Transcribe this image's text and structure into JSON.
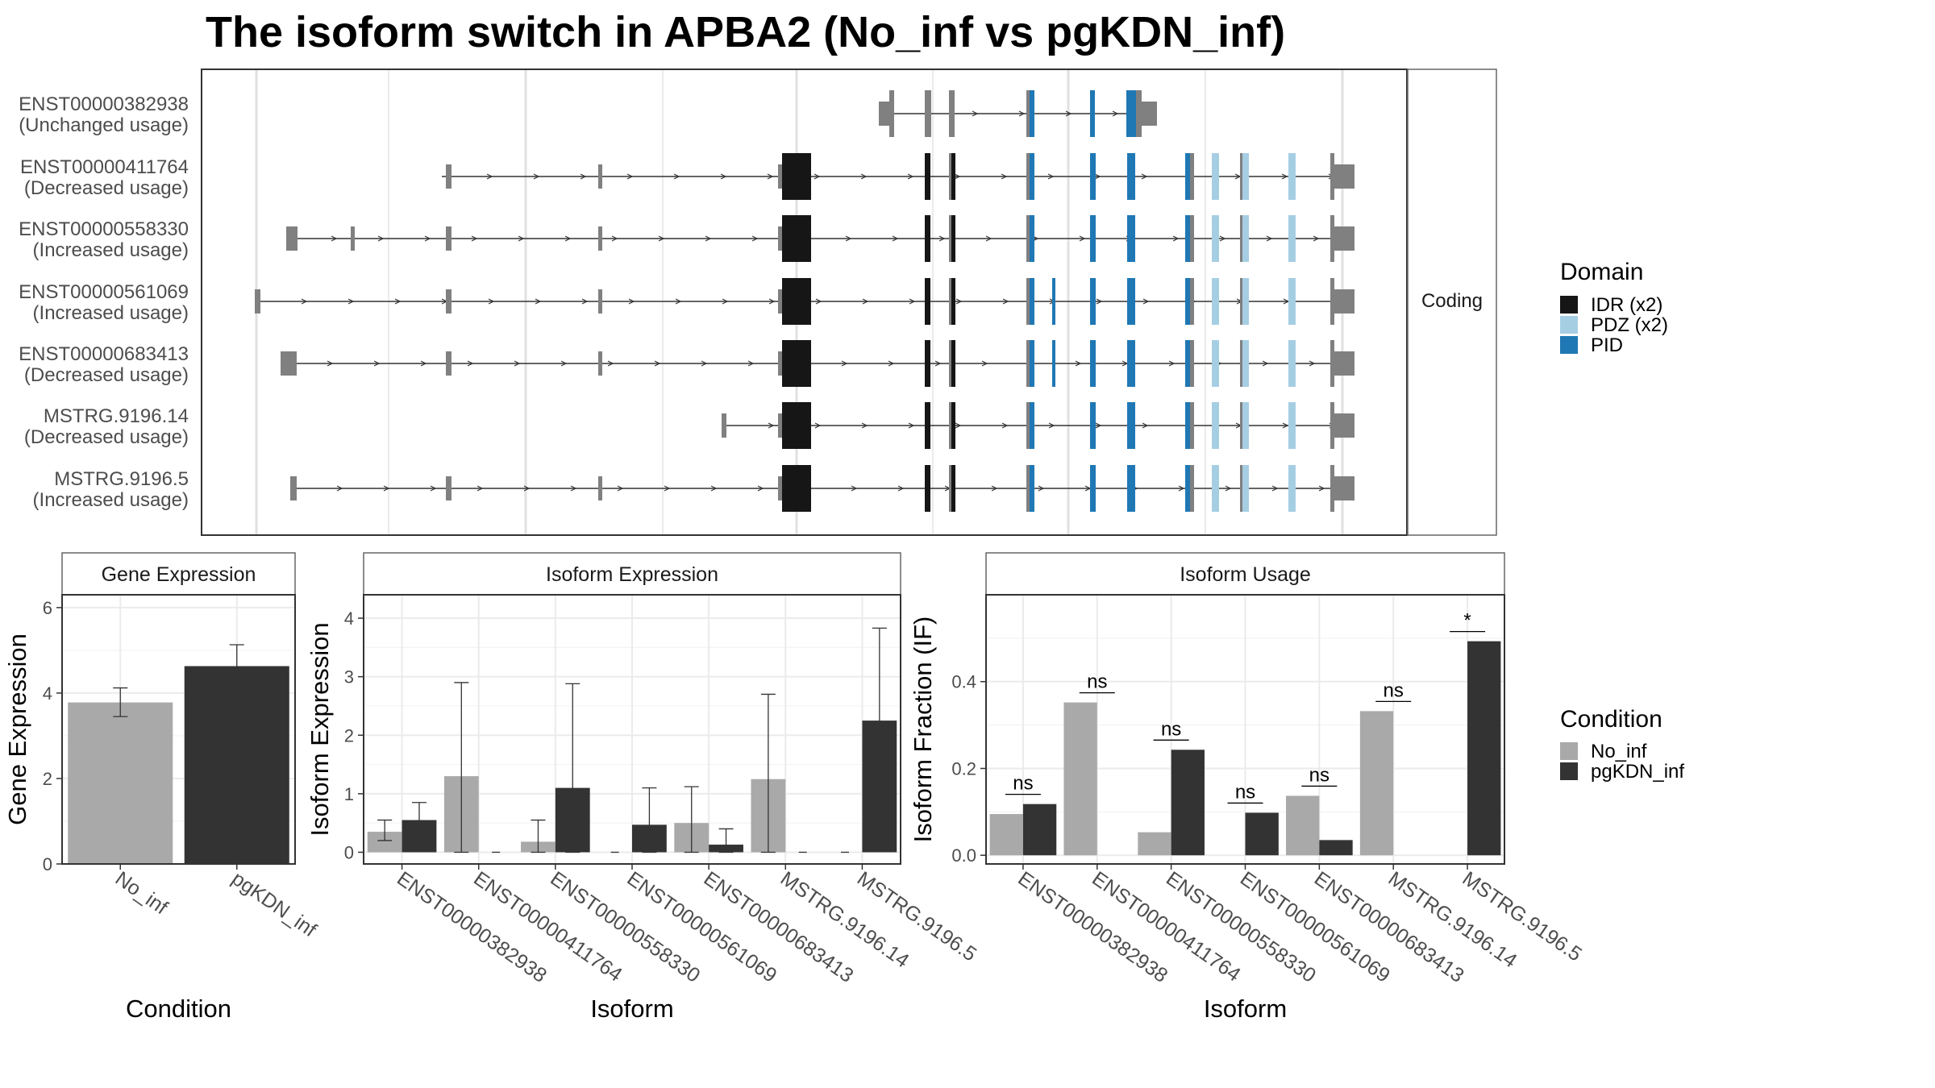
{
  "title": "The isoform switch in APBA2 (No_inf vs pgKDN_inf)",
  "colors": {
    "idr": "#161616",
    "pdz": "#a6cee3",
    "pid": "#1f78b4",
    "exon": "#808080",
    "no_inf": "#a9a9a9",
    "pgkdn_inf": "#333333"
  },
  "chart_data": [
    {
      "type": "gene-structure",
      "facet_label": "Coding",
      "transcripts": [
        {
          "id": "ENST00000382938",
          "label": "(Unchanged usage)"
        },
        {
          "id": "ENST00000411764",
          "label": "(Decreased usage)"
        },
        {
          "id": "ENST00000558330",
          "label": "(Increased usage)"
        },
        {
          "id": "ENST00000561069",
          "label": "(Increased usage)"
        },
        {
          "id": "ENST00000683413",
          "label": "(Decreased usage)"
        },
        {
          "id": "MSTRG.9196.14",
          "label": "(Decreased usage)"
        },
        {
          "id": "MSTRG.9196.5",
          "label": "(Increased usage)"
        }
      ],
      "legend": {
        "title": "Domain",
        "entries": [
          {
            "label": "IDR (x2)",
            "color_key": "idr"
          },
          {
            "label": "PDZ (x2)",
            "color_key": "pdz"
          },
          {
            "label": "PID",
            "color_key": "pid"
          }
        ]
      }
    },
    {
      "type": "bar",
      "facet_label": "Gene Expression",
      "xlabel": "Condition",
      "ylabel": "Gene Expression",
      "categories": [
        "No_inf",
        "pgKDN_inf"
      ],
      "values": [
        3.78,
        4.63
      ],
      "errors": [
        [
          3.45,
          4.12
        ],
        [
          4.13,
          5.13
        ]
      ],
      "ylim": [
        0,
        6.3
      ],
      "yticks": [
        "0",
        "2",
        "4",
        "6"
      ]
    },
    {
      "type": "bar",
      "facet_label": "Isoform Expression",
      "xlabel": "Isoform",
      "ylabel": "Isoform Expression",
      "categories": [
        "ENST00000382938",
        "ENST00000411764",
        "ENST00000558330",
        "ENST00000561069",
        "ENST00000683413",
        "MSTRG.9196.14",
        "MSTRG.9196.5"
      ],
      "series": [
        {
          "name": "No_inf",
          "values": [
            0.35,
            1.3,
            0.18,
            0.0,
            0.5,
            1.25,
            0.0
          ],
          "errors": [
            [
              0.2,
              0.55
            ],
            [
              0.0,
              2.9
            ],
            [
              0.0,
              0.55
            ],
            [
              0.0,
              0.0
            ],
            [
              0.0,
              1.12
            ],
            [
              0.0,
              2.7
            ],
            [
              0.0,
              0.0
            ]
          ]
        },
        {
          "name": "pgKDN_inf",
          "values": [
            0.55,
            0.0,
            1.1,
            0.47,
            0.13,
            0.0,
            2.25
          ],
          "errors": [
            [
              0.28,
              0.85
            ],
            [
              0.0,
              0.0
            ],
            [
              0.0,
              2.88
            ],
            [
              0.0,
              1.1
            ],
            [
              0.0,
              0.4
            ],
            [
              0.0,
              0.0
            ],
            [
              0.68,
              3.83
            ]
          ]
        }
      ],
      "ylim": [
        -0.2,
        4.4
      ],
      "yticks": [
        "0",
        "1",
        "2",
        "3",
        "4"
      ]
    },
    {
      "type": "bar",
      "facet_label": "Isoform Usage",
      "xlabel": "Isoform",
      "ylabel": "Isoform Fraction (IF)",
      "categories": [
        "ENST00000382938",
        "ENST00000411764",
        "ENST00000558330",
        "ENST00000561069",
        "ENST00000683413",
        "MSTRG.9196.14",
        "MSTRG.9196.5"
      ],
      "series": [
        {
          "name": "No_inf",
          "values": [
            0.095,
            0.352,
            0.053,
            0.0,
            0.137,
            0.332,
            0.0
          ]
        },
        {
          "name": "pgKDN_inf",
          "values": [
            0.118,
            0.0,
            0.243,
            0.098,
            0.035,
            0.0,
            0.493
          ]
        }
      ],
      "significance": [
        "ns",
        "ns",
        "ns",
        "ns",
        "ns",
        "ns",
        "*"
      ],
      "ylim": [
        -0.02,
        0.6
      ],
      "yticks": [
        "0.0",
        "0.2",
        "0.4"
      ],
      "legend": {
        "title": "Condition",
        "entries": [
          {
            "label": "No_inf",
            "color_key": "no_inf"
          },
          {
            "label": "pgKDN_inf",
            "color_key": "pgkdn_inf"
          }
        ]
      }
    }
  ]
}
